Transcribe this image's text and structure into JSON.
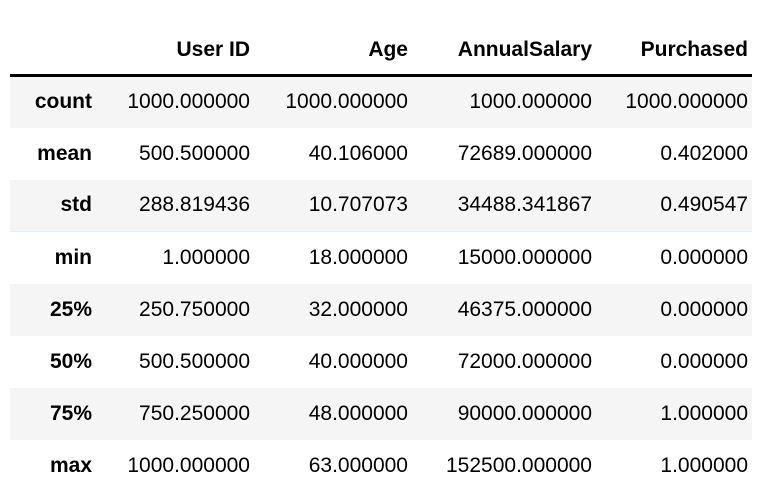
{
  "table": {
    "index_header": "",
    "columns": [
      "User ID",
      "Age",
      "AnnualSalary",
      "Purchased"
    ],
    "rows": [
      {
        "label": "count",
        "values": [
          "1000.000000",
          "1000.000000",
          "1000.000000",
          "1000.000000"
        ]
      },
      {
        "label": "mean",
        "values": [
          "500.500000",
          "40.106000",
          "72689.000000",
          "0.402000"
        ]
      },
      {
        "label": "std",
        "values": [
          "288.819436",
          "10.707073",
          "34488.341867",
          "0.490547"
        ]
      },
      {
        "label": "min",
        "values": [
          "1.000000",
          "18.000000",
          "15000.000000",
          "0.000000"
        ]
      },
      {
        "label": "25%",
        "values": [
          "250.750000",
          "32.000000",
          "46375.000000",
          "0.000000"
        ]
      },
      {
        "label": "50%",
        "values": [
          "500.500000",
          "40.000000",
          "72000.000000",
          "0.000000"
        ]
      },
      {
        "label": "75%",
        "values": [
          "750.250000",
          "48.000000",
          "90000.000000",
          "1.000000"
        ]
      },
      {
        "label": "max",
        "values": [
          "1000.000000",
          "63.000000",
          "152500.000000",
          "1.000000"
        ]
      }
    ]
  }
}
